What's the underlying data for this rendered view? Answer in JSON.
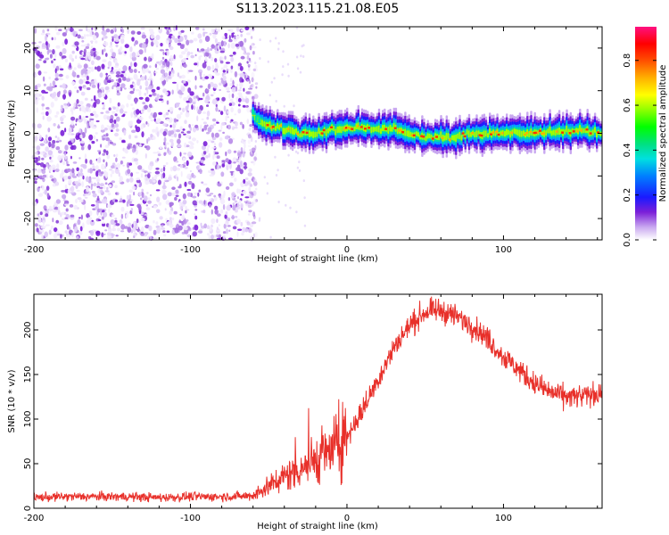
{
  "figure": {
    "title": "S113.2023.115.21.08.E05"
  },
  "chart_data": [
    {
      "type": "heatmap",
      "title": "",
      "xlabel": "Height of straight line (km)",
      "ylabel": "Frequency (Hz)",
      "xlim": [
        -200,
        163
      ],
      "ylim": [
        -25,
        25
      ],
      "x_ticks": [
        -200,
        -100,
        0,
        100
      ],
      "y_ticks": [
        -20,
        -10,
        0,
        10,
        20
      ],
      "x_tick_labels": [
        "-200",
        "-100",
        "0",
        "100"
      ],
      "y_tick_labels": [
        "-20",
        "-10",
        "0",
        "10",
        "20"
      ],
      "colorbar": {
        "label": "Normalized spectral amplitude",
        "range": [
          0,
          0.95
        ],
        "ticks": [
          0,
          0.2,
          0.4,
          0.6,
          0.8
        ],
        "tick_labels": [
          "0.0",
          "0.2",
          "0.4",
          "0.6",
          "0.8"
        ],
        "colormap": "rainbow (white-purple-blue-cyan-green-yellow-orange-red-magenta)"
      },
      "noise_region": {
        "x_range": [
          -200,
          -60
        ],
        "freq_range": [
          -25,
          25
        ],
        "amplitude_range": [
          0.0,
          0.1
        ]
      },
      "signal_trace": {
        "description": "narrow band near 0 Hz for x > -60 km",
        "points": [
          {
            "x": -60,
            "freq": 5
          },
          {
            "x": -58,
            "freq": 3
          },
          {
            "x": -50,
            "freq": 2
          },
          {
            "x": -40,
            "freq": 1
          },
          {
            "x": -30,
            "freq": 0
          },
          {
            "x": -20,
            "freq": 0
          },
          {
            "x": -10,
            "freq": 1
          },
          {
            "x": 0,
            "freq": 1
          },
          {
            "x": 10,
            "freq": 1.5
          },
          {
            "x": 20,
            "freq": 1
          },
          {
            "x": 30,
            "freq": 1
          },
          {
            "x": 40,
            "freq": 0
          },
          {
            "x": 50,
            "freq": -1
          },
          {
            "x": 60,
            "freq": -1
          },
          {
            "x": 70,
            "freq": -1
          },
          {
            "x": 80,
            "freq": 0
          },
          {
            "x": 90,
            "freq": 0
          },
          {
            "x": 100,
            "freq": 0
          },
          {
            "x": 110,
            "freq": 0
          },
          {
            "x": 120,
            "freq": 0
          },
          {
            "x": 130,
            "freq": 0.5
          },
          {
            "x": 140,
            "freq": 0.5
          },
          {
            "x": 150,
            "freq": 0.5
          },
          {
            "x": 163,
            "freq": 0
          }
        ]
      },
      "grid": false
    },
    {
      "type": "line",
      "title": "",
      "xlabel": "Height of straight line (km)",
      "ylabel": "SNR (10 * v/v)",
      "xlim": [
        -200,
        163
      ],
      "ylim": [
        0,
        240
      ],
      "x_ticks": [
        -200,
        -100,
        0,
        100
      ],
      "y_ticks": [
        0,
        50,
        100,
        150,
        200
      ],
      "x_tick_labels": [
        "-200",
        "-100",
        "0",
        "100"
      ],
      "y_tick_labels": [
        "0",
        "50",
        "100",
        "150",
        "200"
      ],
      "color": "#e8302a",
      "grid": false,
      "series": [
        {
          "x": [
            -200,
            -180,
            -160,
            -140,
            -120,
            -100,
            -80,
            -60,
            -50,
            -40,
            -30,
            -20,
            -10,
            0,
            10,
            20,
            30,
            40,
            50,
            60,
            70,
            80,
            90,
            100,
            110,
            120,
            130,
            140,
            150,
            163
          ],
          "values": [
            12,
            13,
            13,
            13,
            12,
            13,
            13,
            14,
            25,
            35,
            45,
            55,
            65,
            80,
            110,
            145,
            180,
            205,
            220,
            222,
            215,
            205,
            190,
            170,
            155,
            140,
            130,
            125,
            125,
            130
          ]
        }
      ]
    }
  ]
}
